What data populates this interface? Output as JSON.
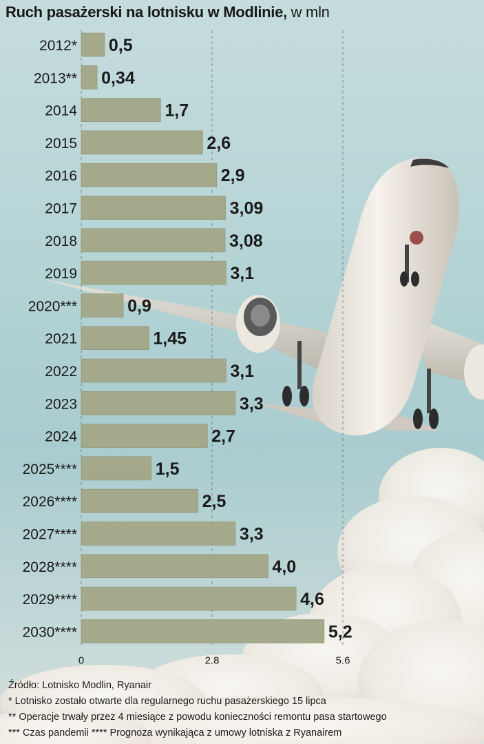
{
  "title": "Ruch pasażerski na lotnisku w Modlinie,",
  "unit": "w mln",
  "colors": {
    "bar": "#a3a98a",
    "bar_stroke": "#8c9274",
    "text": "#1a1a1a",
    "grid": "#5a6a6a"
  },
  "chart_data": {
    "type": "bar",
    "orientation": "horizontal",
    "categories": [
      "2012*",
      "2013**",
      "2014",
      "2015",
      "2016",
      "2017",
      "2018",
      "2019",
      "2020***",
      "2021",
      "2022",
      "2023",
      "2024",
      "2025****",
      "2026****",
      "2027****",
      "2028****",
      "2029****",
      "2030****"
    ],
    "values": [
      0.5,
      0.34,
      1.7,
      2.6,
      2.9,
      3.09,
      3.08,
      3.1,
      0.9,
      1.45,
      3.1,
      3.3,
      2.7,
      1.5,
      2.5,
      3.3,
      4.0,
      4.6,
      5.2
    ],
    "value_labels": [
      "0,5",
      "0,34",
      "1,7",
      "2,6",
      "2,9",
      "3,09",
      "3,08",
      "3,1",
      "0,9",
      "1,45",
      "3,1",
      "3,3",
      "2,7",
      "1,5",
      "2,5",
      "3,3",
      "4,0",
      "4,6",
      "5,2"
    ],
    "xlim": [
      0,
      5.6
    ],
    "xticks": [
      0,
      2.8,
      5.6
    ],
    "xtick_labels": [
      "0",
      "2.8",
      "5.6"
    ],
    "grid": true,
    "grid_style": "dashed vertical"
  },
  "footer": {
    "source": "Źródło: Lotnisko Modlin, Ryanair",
    "note1": "* Lotnisko zostało otwarte dla regularnego ruchu pasażerskiego 15 lipca",
    "note2": "** Operacje trwały przez 4 miesiące z powodu konieczności remontu pasa startowego",
    "note3": "*** Czas pandemii **** Prognoza wynikająca z umowy lotniska z Ryanairem"
  }
}
